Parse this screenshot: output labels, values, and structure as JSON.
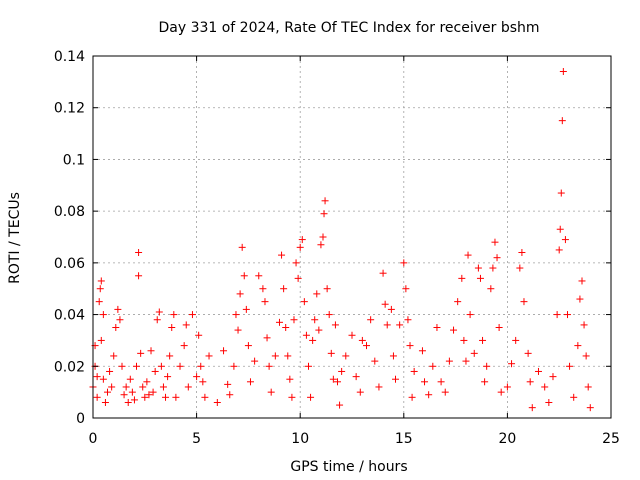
{
  "chart_data": {
    "type": "scatter",
    "title": "Day 331 of 2024, Rate Of TEC Index for receiver bshm",
    "xlabel": "GPS time / hours",
    "ylabel": "ROTI / TECUs",
    "xlim": [
      0,
      25
    ],
    "ylim": [
      0,
      0.14
    ],
    "xticks": [
      0,
      5,
      10,
      15,
      20,
      25
    ],
    "yticks": [
      0,
      0.02,
      0.04,
      0.06,
      0.08,
      0.1,
      0.12,
      0.14
    ],
    "xtick_labels": [
      "0",
      "5",
      "10",
      "15",
      "20",
      "25"
    ],
    "ytick_labels": [
      "0",
      "0.02",
      "0.04",
      "0.06",
      "0.08",
      "0.1",
      "0.12",
      "0.14"
    ],
    "grid": true,
    "marker": "+",
    "marker_color": "#ff0000",
    "points": [
      [
        0.0,
        0.012
      ],
      [
        0.1,
        0.02
      ],
      [
        0.1,
        0.028
      ],
      [
        0.2,
        0.008
      ],
      [
        0.2,
        0.016
      ],
      [
        0.3,
        0.045
      ],
      [
        0.35,
        0.05
      ],
      [
        0.4,
        0.053
      ],
      [
        0.4,
        0.03
      ],
      [
        0.5,
        0.04
      ],
      [
        0.5,
        0.015
      ],
      [
        0.6,
        0.006
      ],
      [
        0.7,
        0.01
      ],
      [
        0.8,
        0.018
      ],
      [
        0.9,
        0.012
      ],
      [
        1.0,
        0.024
      ],
      [
        1.1,
        0.035
      ],
      [
        1.2,
        0.042
      ],
      [
        1.3,
        0.038
      ],
      [
        1.4,
        0.02
      ],
      [
        1.5,
        0.009
      ],
      [
        1.6,
        0.012
      ],
      [
        1.7,
        0.006
      ],
      [
        1.8,
        0.015
      ],
      [
        1.9,
        0.01
      ],
      [
        2.0,
        0.007
      ],
      [
        2.1,
        0.02
      ],
      [
        2.2,
        0.055
      ],
      [
        2.2,
        0.064
      ],
      [
        2.3,
        0.025
      ],
      [
        2.4,
        0.012
      ],
      [
        2.5,
        0.008
      ],
      [
        2.6,
        0.014
      ],
      [
        2.7,
        0.009
      ],
      [
        2.8,
        0.026
      ],
      [
        2.9,
        0.01
      ],
      [
        3.0,
        0.018
      ],
      [
        3.1,
        0.038
      ],
      [
        3.2,
        0.041
      ],
      [
        3.3,
        0.02
      ],
      [
        3.4,
        0.012
      ],
      [
        3.5,
        0.008
      ],
      [
        3.6,
        0.016
      ],
      [
        3.7,
        0.024
      ],
      [
        3.8,
        0.035
      ],
      [
        3.9,
        0.04
      ],
      [
        4.0,
        0.008
      ],
      [
        4.2,
        0.02
      ],
      [
        4.4,
        0.028
      ],
      [
        4.5,
        0.036
      ],
      [
        4.6,
        0.012
      ],
      [
        4.8,
        0.04
      ],
      [
        5.0,
        0.016
      ],
      [
        5.1,
        0.032
      ],
      [
        5.2,
        0.02
      ],
      [
        5.3,
        0.014
      ],
      [
        5.4,
        0.008
      ],
      [
        5.6,
        0.024
      ],
      [
        6.0,
        0.006
      ],
      [
        6.3,
        0.026
      ],
      [
        6.5,
        0.013
      ],
      [
        6.6,
        0.009
      ],
      [
        6.8,
        0.02
      ],
      [
        6.9,
        0.04
      ],
      [
        7.0,
        0.034
      ],
      [
        7.1,
        0.048
      ],
      [
        7.2,
        0.066
      ],
      [
        7.3,
        0.055
      ],
      [
        7.4,
        0.042
      ],
      [
        7.5,
        0.028
      ],
      [
        7.6,
        0.014
      ],
      [
        7.8,
        0.022
      ],
      [
        8.0,
        0.055
      ],
      [
        8.2,
        0.05
      ],
      [
        8.3,
        0.045
      ],
      [
        8.4,
        0.031
      ],
      [
        8.5,
        0.02
      ],
      [
        8.6,
        0.01
      ],
      [
        8.8,
        0.024
      ],
      [
        9.0,
        0.037
      ],
      [
        9.1,
        0.063
      ],
      [
        9.2,
        0.05
      ],
      [
        9.3,
        0.035
      ],
      [
        9.4,
        0.024
      ],
      [
        9.5,
        0.015
      ],
      [
        9.6,
        0.008
      ],
      [
        9.7,
        0.038
      ],
      [
        9.8,
        0.06
      ],
      [
        9.9,
        0.054
      ],
      [
        10.0,
        0.066
      ],
      [
        10.1,
        0.069
      ],
      [
        10.2,
        0.045
      ],
      [
        10.3,
        0.032
      ],
      [
        10.4,
        0.02
      ],
      [
        10.5,
        0.008
      ],
      [
        10.6,
        0.03
      ],
      [
        10.7,
        0.038
      ],
      [
        10.8,
        0.048
      ],
      [
        10.9,
        0.034
      ],
      [
        11.0,
        0.067
      ],
      [
        11.1,
        0.07
      ],
      [
        11.15,
        0.079
      ],
      [
        11.2,
        0.084
      ],
      [
        11.3,
        0.05
      ],
      [
        11.4,
        0.04
      ],
      [
        11.5,
        0.025
      ],
      [
        11.6,
        0.015
      ],
      [
        11.7,
        0.036
      ],
      [
        11.8,
        0.014
      ],
      [
        11.9,
        0.005
      ],
      [
        12.0,
        0.018
      ],
      [
        12.2,
        0.024
      ],
      [
        12.5,
        0.032
      ],
      [
        12.7,
        0.016
      ],
      [
        12.9,
        0.01
      ],
      [
        13.0,
        0.03
      ],
      [
        13.2,
        0.028
      ],
      [
        13.4,
        0.038
      ],
      [
        13.6,
        0.022
      ],
      [
        13.8,
        0.012
      ],
      [
        14.0,
        0.056
      ],
      [
        14.1,
        0.044
      ],
      [
        14.2,
        0.036
      ],
      [
        14.4,
        0.042
      ],
      [
        14.5,
        0.024
      ],
      [
        14.6,
        0.015
      ],
      [
        14.8,
        0.036
      ],
      [
        15.0,
        0.06
      ],
      [
        15.1,
        0.05
      ],
      [
        15.2,
        0.038
      ],
      [
        15.3,
        0.028
      ],
      [
        15.4,
        0.008
      ],
      [
        15.5,
        0.018
      ],
      [
        15.9,
        0.026
      ],
      [
        16.0,
        0.014
      ],
      [
        16.2,
        0.009
      ],
      [
        16.4,
        0.02
      ],
      [
        16.6,
        0.035
      ],
      [
        16.8,
        0.014
      ],
      [
        17.0,
        0.01
      ],
      [
        17.2,
        0.022
      ],
      [
        17.4,
        0.034
      ],
      [
        17.6,
        0.045
      ],
      [
        17.8,
        0.054
      ],
      [
        17.9,
        0.03
      ],
      [
        18.0,
        0.022
      ],
      [
        18.1,
        0.063
      ],
      [
        18.2,
        0.04
      ],
      [
        18.4,
        0.025
      ],
      [
        18.6,
        0.058
      ],
      [
        18.7,
        0.054
      ],
      [
        18.8,
        0.03
      ],
      [
        18.9,
        0.014
      ],
      [
        19.0,
        0.02
      ],
      [
        19.2,
        0.05
      ],
      [
        19.3,
        0.058
      ],
      [
        19.4,
        0.068
      ],
      [
        19.5,
        0.062
      ],
      [
        19.6,
        0.035
      ],
      [
        19.7,
        0.01
      ],
      [
        20.0,
        0.012
      ],
      [
        20.2,
        0.021
      ],
      [
        20.4,
        0.03
      ],
      [
        20.6,
        0.058
      ],
      [
        20.7,
        0.064
      ],
      [
        20.8,
        0.045
      ],
      [
        21.0,
        0.025
      ],
      [
        21.1,
        0.014
      ],
      [
        21.2,
        0.004
      ],
      [
        21.5,
        0.018
      ],
      [
        21.8,
        0.012
      ],
      [
        22.0,
        0.006
      ],
      [
        22.2,
        0.016
      ],
      [
        22.4,
        0.04
      ],
      [
        22.5,
        0.065
      ],
      [
        22.55,
        0.073
      ],
      [
        22.6,
        0.087
      ],
      [
        22.65,
        0.115
      ],
      [
        22.7,
        0.134
      ],
      [
        22.8,
        0.069
      ],
      [
        22.9,
        0.04
      ],
      [
        23.0,
        0.02
      ],
      [
        23.2,
        0.008
      ],
      [
        23.4,
        0.028
      ],
      [
        23.5,
        0.046
      ],
      [
        23.6,
        0.053
      ],
      [
        23.7,
        0.036
      ],
      [
        23.8,
        0.024
      ],
      [
        23.9,
        0.012
      ],
      [
        24.0,
        0.004
      ]
    ]
  }
}
